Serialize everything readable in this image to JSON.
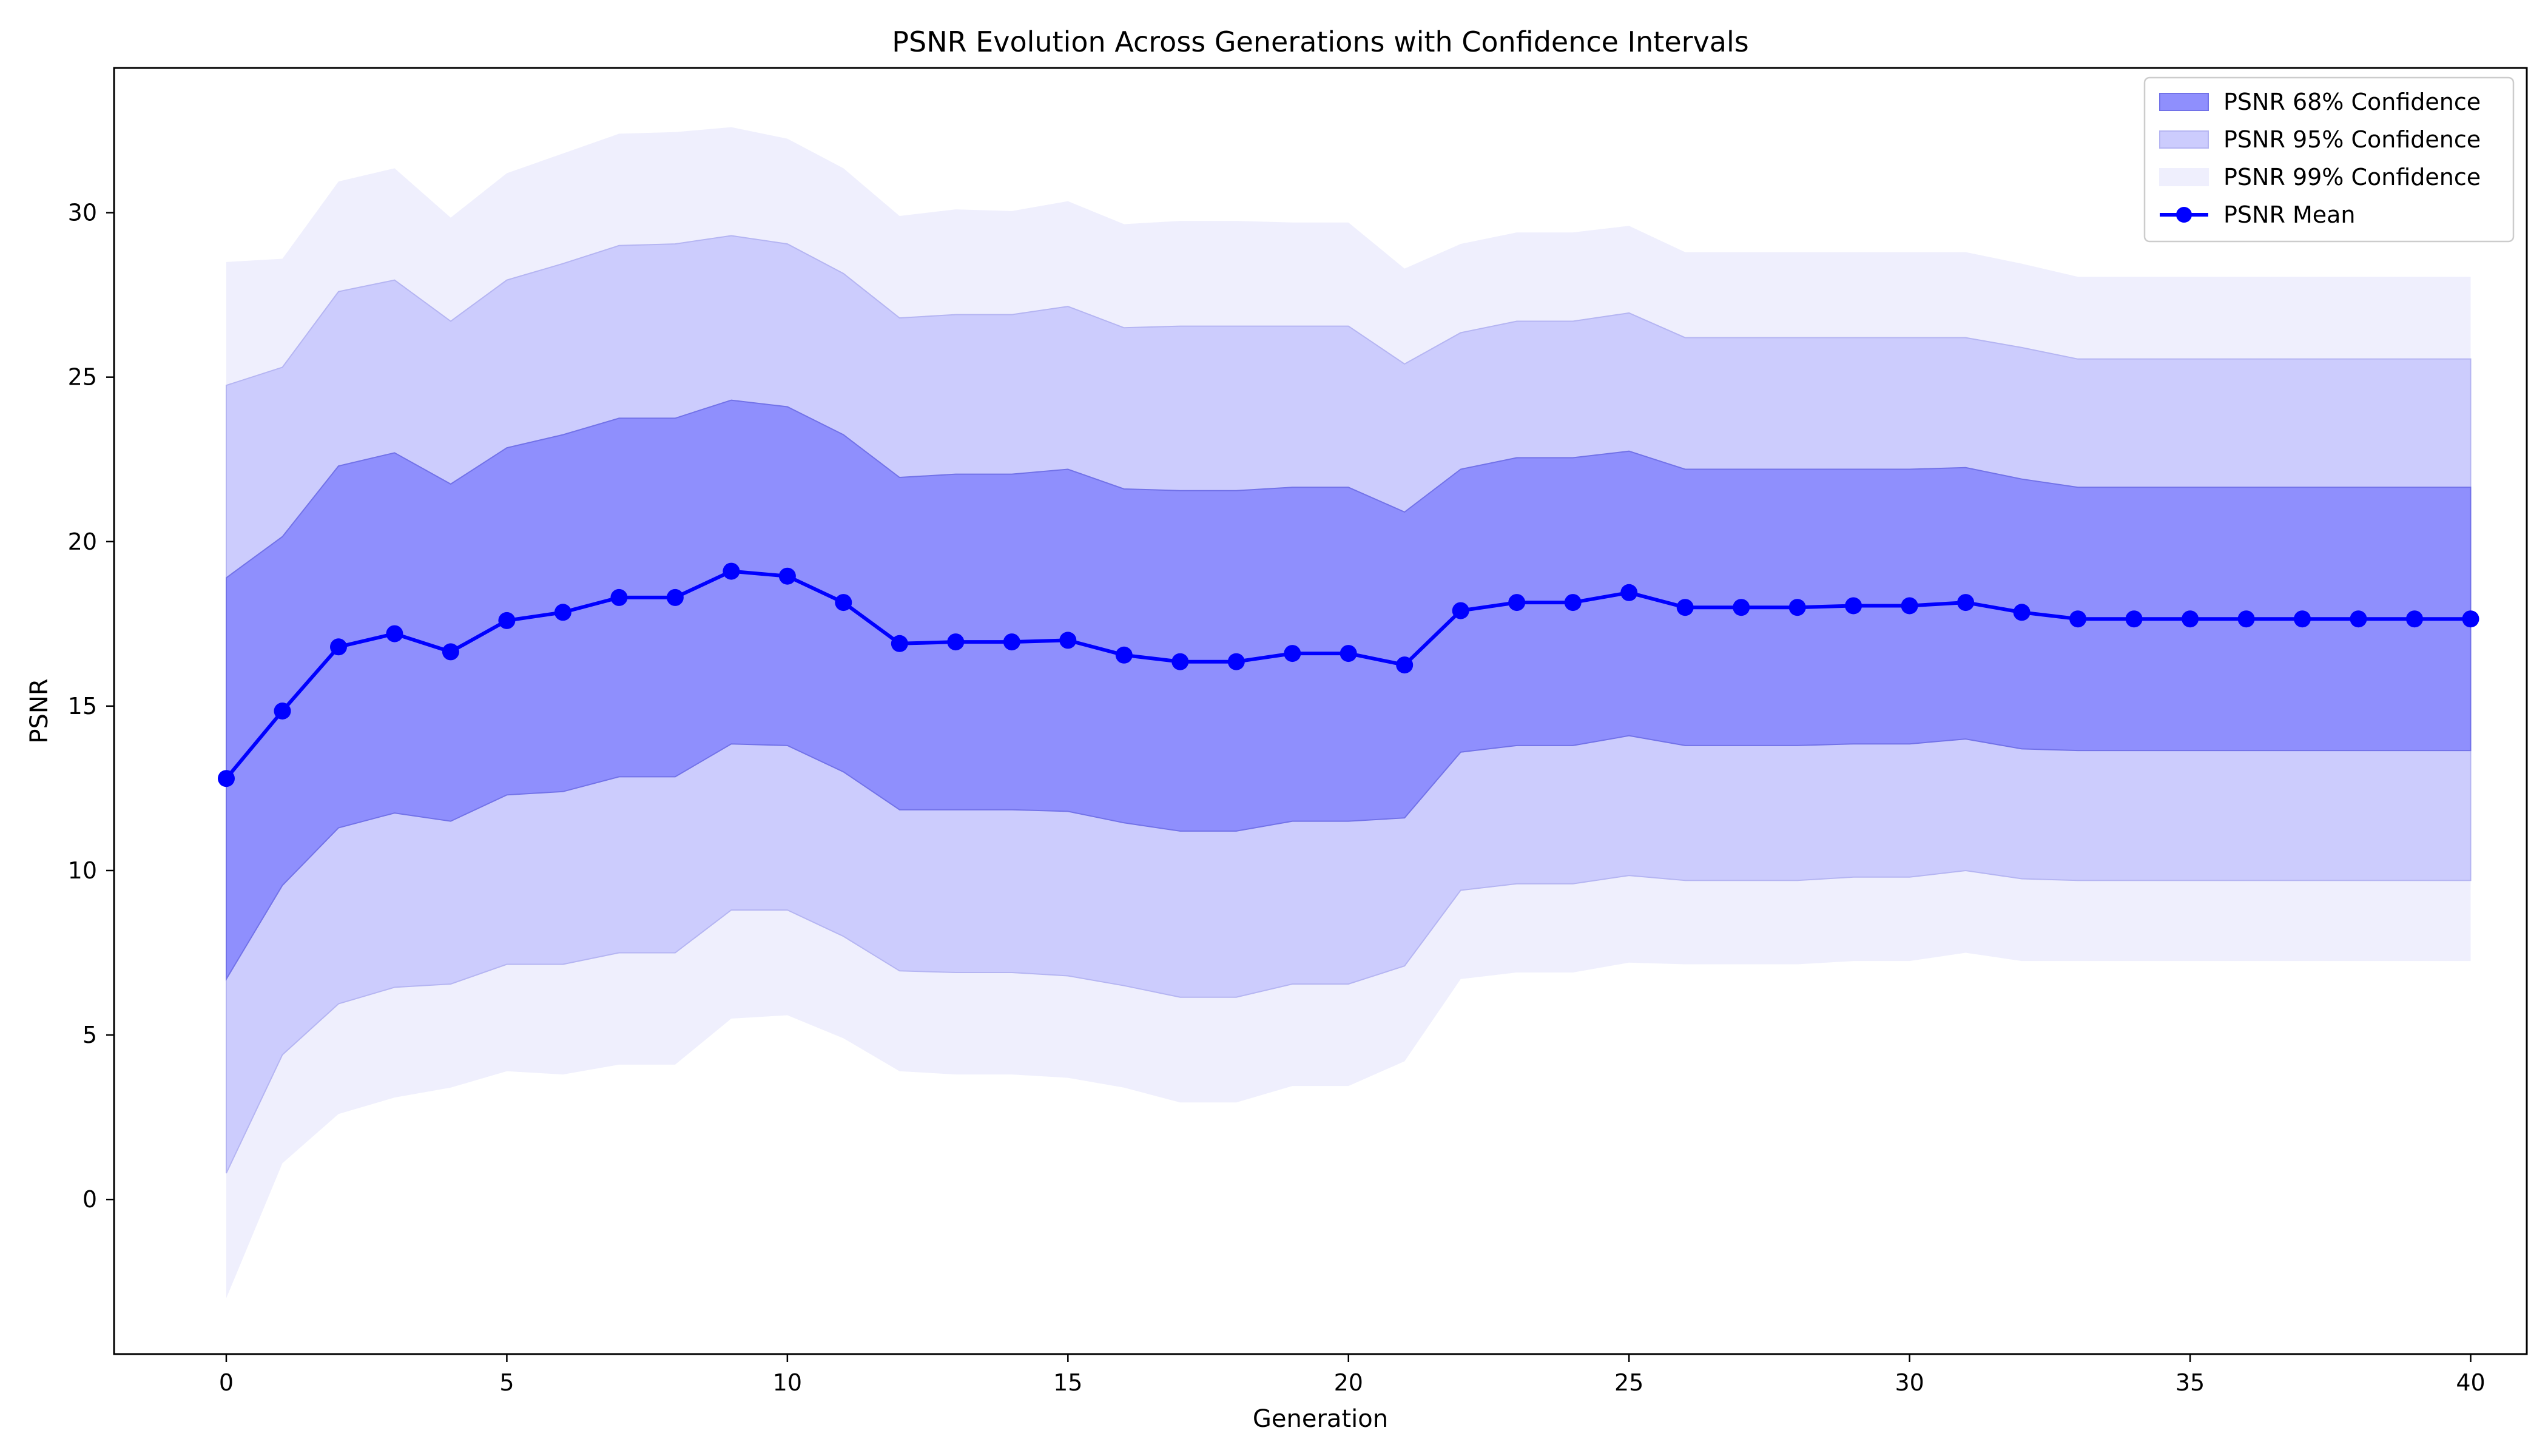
{
  "chart_data": {
    "type": "line",
    "title": "PSNR Evolution Across Generations with Confidence Intervals",
    "xlabel": "Generation",
    "ylabel": "PSNR",
    "xlim": [
      -2,
      41
    ],
    "ylim": [
      -4.7,
      34.4
    ],
    "xticks": [
      0,
      5,
      10,
      15,
      20,
      25,
      30,
      35,
      40
    ],
    "yticks": [
      0,
      5,
      10,
      15,
      20,
      25,
      30
    ],
    "grid": false,
    "legend_position": "top-right",
    "colors": {
      "mean": "#0000ff",
      "band68": "#8f8ffd",
      "band95": "#ccccfd",
      "band99": "#efeffd",
      "band68_edge": "#7272e8",
      "band95_edge": "#b5b5f2"
    },
    "x": [
      0,
      1,
      2,
      3,
      4,
      5,
      6,
      7,
      8,
      9,
      10,
      11,
      12,
      13,
      14,
      15,
      16,
      17,
      18,
      19,
      20,
      21,
      22,
      23,
      24,
      25,
      26,
      27,
      28,
      29,
      30,
      31,
      32,
      33,
      34,
      35,
      36,
      37,
      38,
      39,
      40
    ],
    "series": [
      {
        "name": "PSNR Mean",
        "values": [
          12.8,
          14.85,
          16.8,
          17.2,
          16.65,
          17.6,
          17.85,
          18.3,
          18.3,
          19.1,
          18.95,
          18.15,
          16.9,
          16.95,
          16.95,
          17.0,
          16.55,
          16.35,
          16.35,
          16.6,
          16.6,
          16.25,
          17.9,
          18.15,
          18.15,
          18.45,
          18.0,
          18.0,
          18.0,
          18.05,
          18.05,
          18.15,
          17.85,
          17.65,
          17.65,
          17.65,
          17.65,
          17.65,
          17.65,
          17.65,
          17.65
        ]
      }
    ],
    "bands": [
      {
        "name": "PSNR 99% Confidence",
        "lower": [
          -3.0,
          1.1,
          2.6,
          3.1,
          3.4,
          3.9,
          3.8,
          4.1,
          4.1,
          5.5,
          5.6,
          4.9,
          3.9,
          3.8,
          3.8,
          3.7,
          3.4,
          2.95,
          2.95,
          3.45,
          3.45,
          4.2,
          6.7,
          6.9,
          6.9,
          7.2,
          7.15,
          7.15,
          7.15,
          7.25,
          7.25,
          7.5,
          7.25,
          7.25,
          7.25,
          7.25,
          7.25,
          7.25,
          7.25,
          7.25,
          7.25
        ],
        "upper": [
          28.5,
          28.6,
          30.95,
          31.35,
          29.85,
          31.2,
          31.8,
          32.4,
          32.45,
          32.6,
          32.25,
          31.35,
          29.9,
          30.1,
          30.05,
          30.35,
          29.65,
          29.75,
          29.75,
          29.7,
          29.7,
          28.3,
          29.05,
          29.4,
          29.4,
          29.6,
          28.8,
          28.8,
          28.8,
          28.8,
          28.8,
          28.8,
          28.45,
          28.05,
          28.05,
          28.05,
          28.05,
          28.05,
          28.05,
          28.05,
          28.05
        ]
      },
      {
        "name": "PSNR 95% Confidence",
        "lower": [
          0.8,
          4.4,
          5.95,
          6.45,
          6.55,
          7.15,
          7.15,
          7.5,
          7.5,
          8.8,
          8.8,
          8.0,
          6.95,
          6.9,
          6.9,
          6.8,
          6.5,
          6.15,
          6.15,
          6.55,
          6.55,
          7.1,
          9.4,
          9.6,
          9.6,
          9.85,
          9.7,
          9.7,
          9.7,
          9.8,
          9.8,
          10.0,
          9.75,
          9.7,
          9.7,
          9.7,
          9.7,
          9.7,
          9.7,
          9.7,
          9.7
        ],
        "upper": [
          24.75,
          25.3,
          27.6,
          27.95,
          26.7,
          27.95,
          28.45,
          29.0,
          29.05,
          29.3,
          29.05,
          28.15,
          26.8,
          26.9,
          26.9,
          27.15,
          26.5,
          26.55,
          26.55,
          26.55,
          26.55,
          25.4,
          26.35,
          26.7,
          26.7,
          26.95,
          26.2,
          26.2,
          26.2,
          26.2,
          26.2,
          26.2,
          25.9,
          25.55,
          25.55,
          25.55,
          25.55,
          25.55,
          25.55,
          25.55,
          25.55
        ]
      },
      {
        "name": "PSNR 68% Confidence",
        "lower": [
          6.7,
          9.55,
          11.3,
          11.75,
          11.5,
          12.3,
          12.4,
          12.85,
          12.85,
          13.85,
          13.8,
          13.0,
          11.85,
          11.85,
          11.85,
          11.8,
          11.45,
          11.2,
          11.2,
          11.5,
          11.5,
          11.6,
          13.6,
          13.8,
          13.8,
          14.1,
          13.8,
          13.8,
          13.8,
          13.85,
          13.85,
          14.0,
          13.7,
          13.65,
          13.65,
          13.65,
          13.65,
          13.65,
          13.65,
          13.65,
          13.65
        ],
        "upper": [
          18.9,
          20.15,
          22.3,
          22.7,
          21.75,
          22.85,
          23.25,
          23.75,
          23.75,
          24.3,
          24.1,
          23.25,
          21.95,
          22.05,
          22.05,
          22.2,
          21.6,
          21.55,
          21.55,
          21.65,
          21.65,
          20.9,
          22.2,
          22.55,
          22.55,
          22.75,
          22.2,
          22.2,
          22.2,
          22.2,
          22.2,
          22.25,
          21.9,
          21.65,
          21.65,
          21.65,
          21.65,
          21.65,
          21.65,
          21.65,
          21.65
        ]
      }
    ],
    "legend": [
      {
        "label": "PSNR 68% Confidence",
        "kind": "band",
        "band": "band68"
      },
      {
        "label": "PSNR 95% Confidence",
        "kind": "band",
        "band": "band95"
      },
      {
        "label": "PSNR 99% Confidence",
        "kind": "band",
        "band": "band99"
      },
      {
        "label": "PSNR Mean",
        "kind": "line"
      }
    ]
  }
}
